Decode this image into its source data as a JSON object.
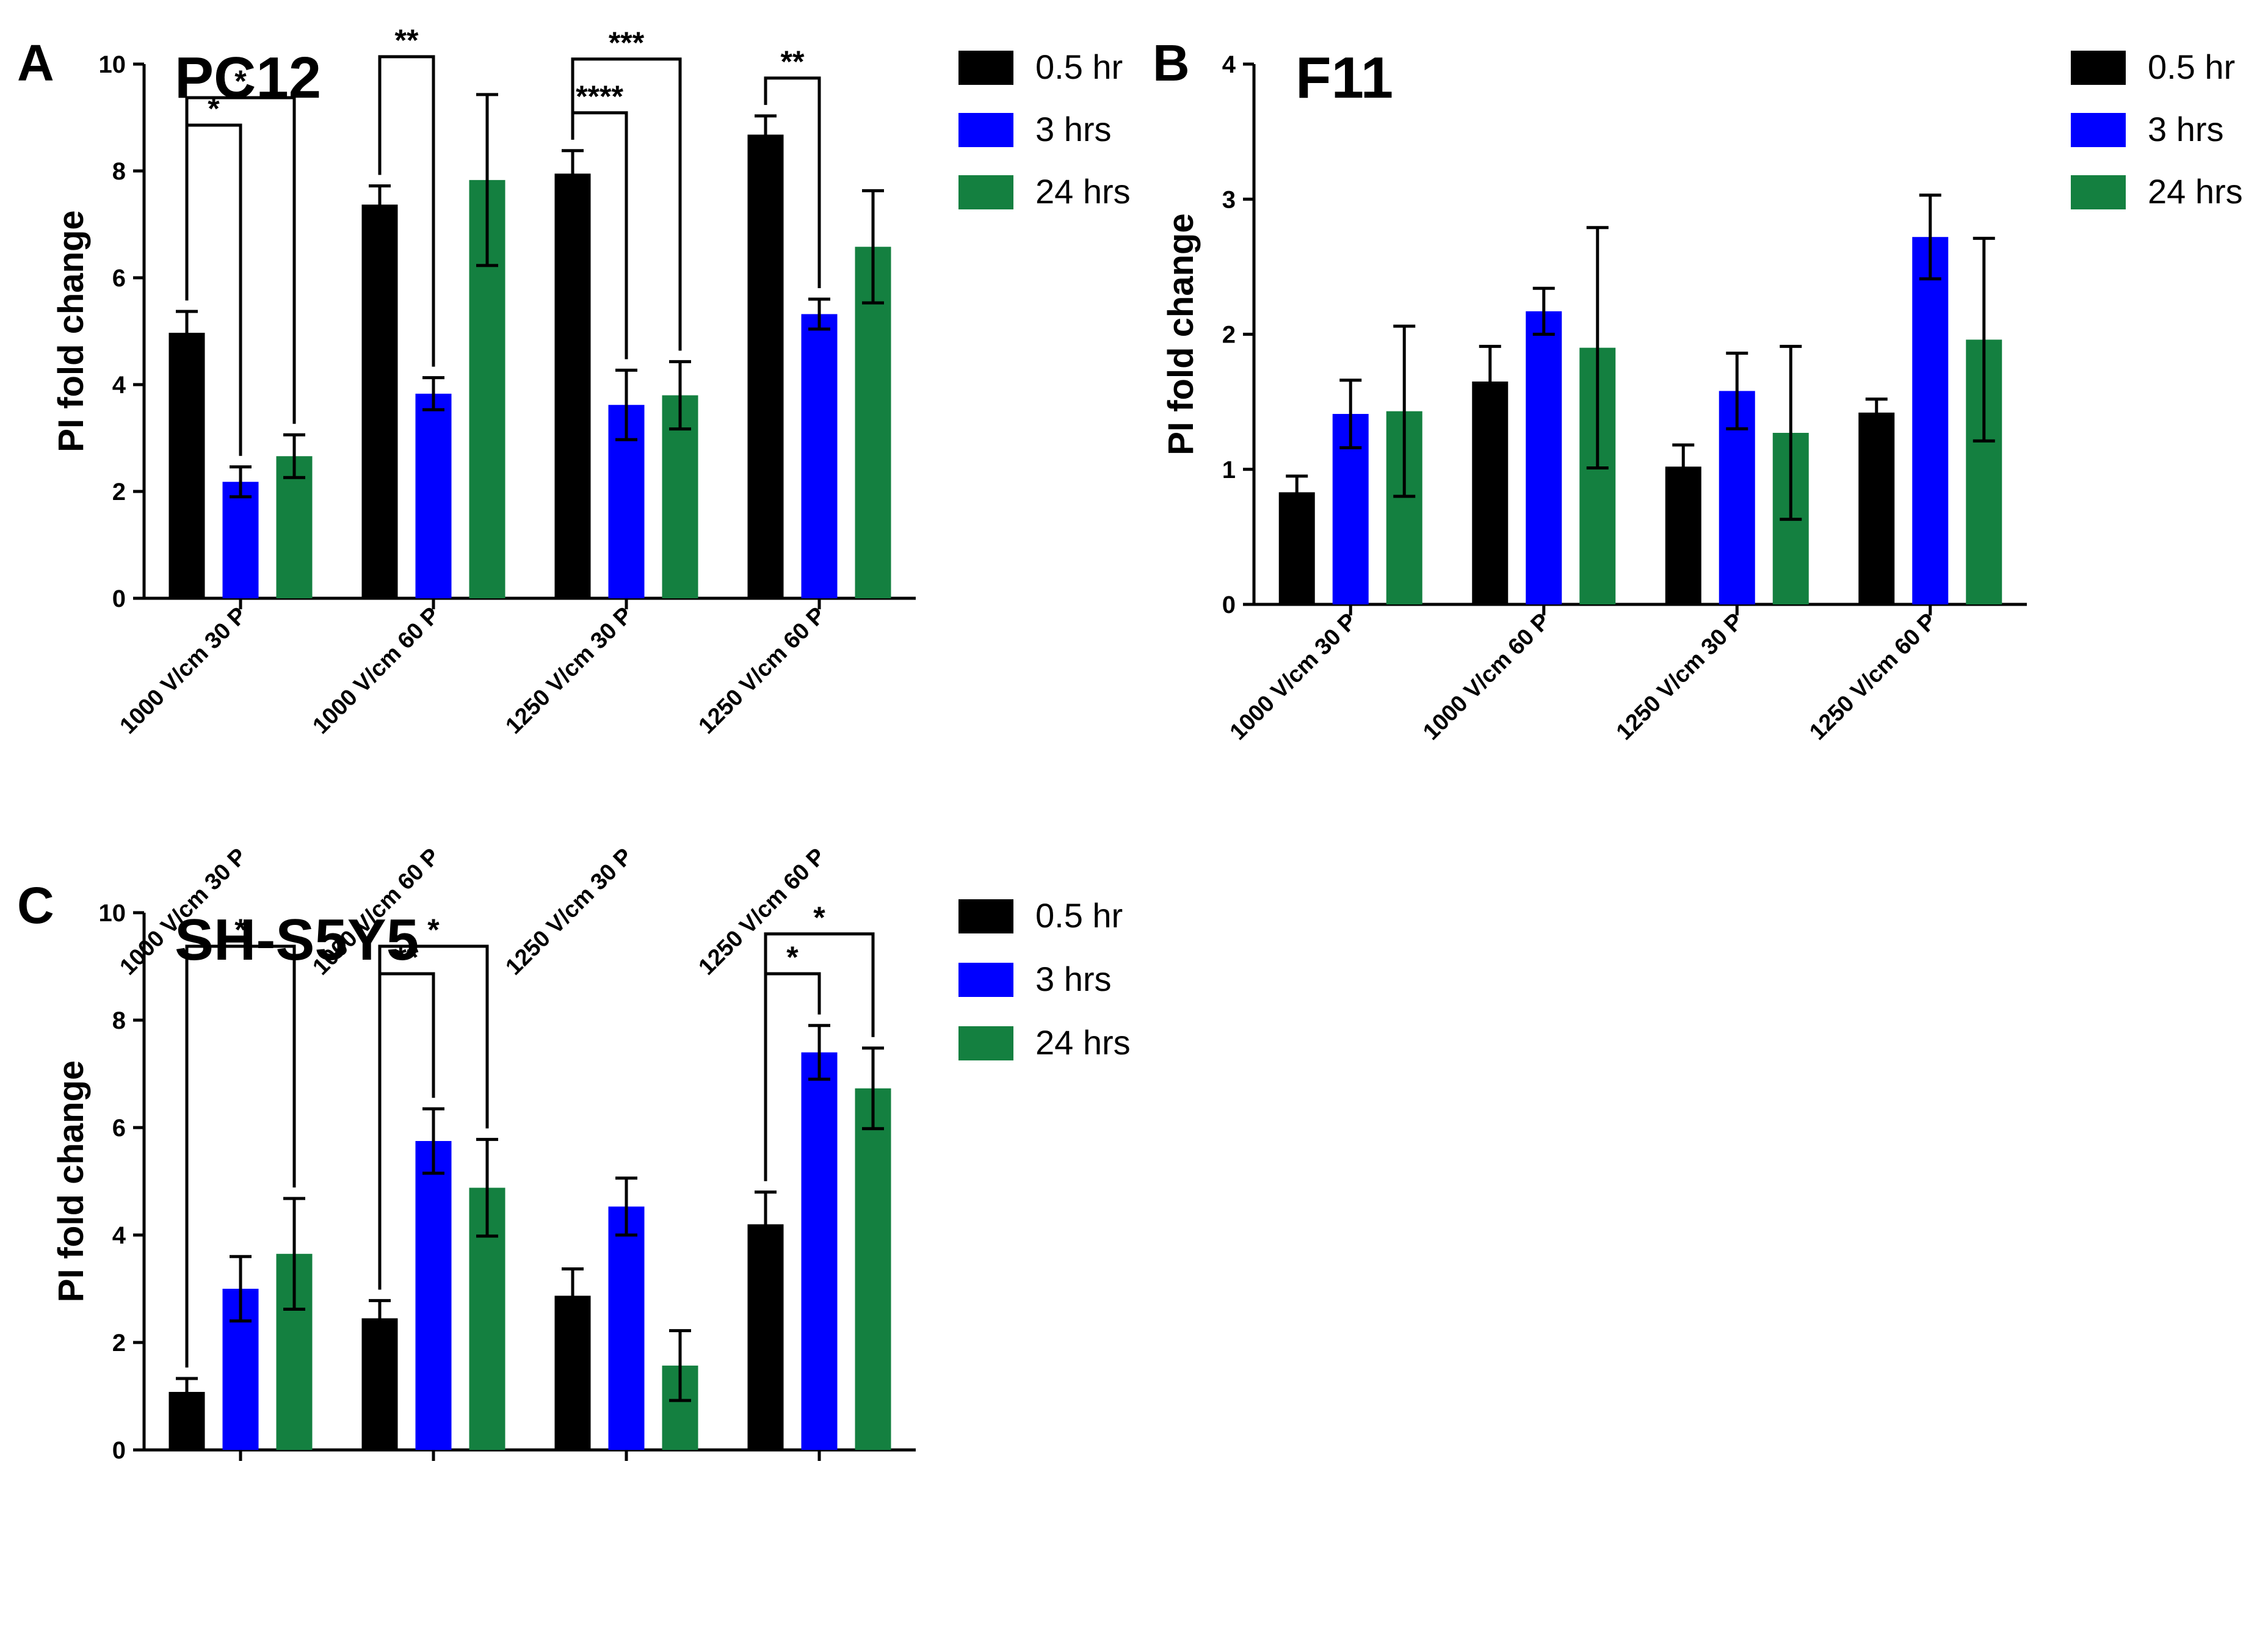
{
  "colors": {
    "0.5 hr": "#000000",
    "3 hrs": "#0000ff",
    "24 hrs": "#148040"
  },
  "chart_data": [
    {
      "panel": "A",
      "title": "PC12",
      "type": "bar",
      "ylabel": "PI fold change",
      "xlabel": "",
      "ylim": [
        0,
        10
      ],
      "yticks": [
        "0",
        "2",
        "4",
        "6",
        "8",
        "10"
      ],
      "categories": [
        "1000 V/cm 30 P",
        "1000 V/cm 60 P",
        "1250 V/cm 30 P",
        "1250 V/cm 60 P"
      ],
      "legend": [
        "0.5 hr",
        "3 hrs",
        "24 hrs"
      ],
      "series": [
        {
          "name": "0.5 hr",
          "values": [
            4.97,
            7.37,
            7.95,
            8.68
          ],
          "errors": [
            0.4,
            0.35,
            0.43,
            0.35
          ]
        },
        {
          "name": "3 hrs",
          "values": [
            2.18,
            3.83,
            3.62,
            5.32
          ],
          "errors": [
            0.28,
            0.3,
            0.65,
            0.28
          ]
        },
        {
          "name": "24 hrs",
          "values": [
            2.66,
            7.83,
            3.8,
            6.58
          ],
          "errors": [
            0.4,
            1.6,
            0.63,
            1.05
          ]
        }
      ],
      "significance": [
        {
          "category": 0,
          "from": 0,
          "to": 1,
          "label": "*",
          "level": 1
        },
        {
          "category": 0,
          "from": 0,
          "to": 2,
          "label": "*",
          "level": 2
        },
        {
          "category": 1,
          "from": 0,
          "to": 1,
          "label": "**",
          "level": 1
        },
        {
          "category": 2,
          "from": 0,
          "to": 1,
          "label": "****",
          "level": 1
        },
        {
          "category": 2,
          "from": 0,
          "to": 2,
          "label": "***",
          "level": 2
        },
        {
          "category": 3,
          "from": 0,
          "to": 1,
          "label": "**",
          "level": 1
        }
      ]
    },
    {
      "panel": "B",
      "title": "F11",
      "type": "bar",
      "ylabel": "PI fold change",
      "xlabel": "",
      "ylim": [
        0,
        4
      ],
      "yticks": [
        "0",
        "1",
        "2",
        "3",
        "4"
      ],
      "categories": [
        "1000 V/cm 30 P",
        "1000 V/cm 60 P",
        "1250 V/cm 30 P",
        "1250 V/cm 60 P"
      ],
      "legend": [
        "0.5 hr",
        "3 hrs",
        "24 hrs"
      ],
      "series": [
        {
          "name": "0.5 hr",
          "values": [
            0.83,
            1.65,
            1.02,
            1.42
          ],
          "errors": [
            0.12,
            0.26,
            0.16,
            0.1
          ]
        },
        {
          "name": "3 hrs",
          "values": [
            1.41,
            2.17,
            1.58,
            2.72
          ],
          "errors": [
            0.25,
            0.17,
            0.28,
            0.31
          ]
        },
        {
          "name": "24 hrs",
          "values": [
            1.43,
            1.9,
            1.27,
            1.96
          ],
          "errors": [
            0.63,
            0.89,
            0.64,
            0.75
          ]
        }
      ],
      "significance": []
    },
    {
      "panel": "C",
      "title": "SH-S5Y5",
      "type": "bar",
      "ylabel": "PI fold change",
      "xlabel": "",
      "ylim": [
        0,
        10
      ],
      "yticks": [
        "0",
        "2",
        "4",
        "6",
        "8",
        "10"
      ],
      "categories": [
        "1000 V/cm 30 P",
        "1000 V/cm 60 P",
        "1250 V/cm 30 P",
        "1250 V/cm 60 P"
      ],
      "legend": [
        "0.5 hr",
        "3 hrs",
        "24 hrs"
      ],
      "series": [
        {
          "name": "0.5 hr",
          "values": [
            1.08,
            2.45,
            2.87,
            4.2
          ],
          "errors": [
            0.25,
            0.33,
            0.5,
            0.6
          ]
        },
        {
          "name": "3 hrs",
          "values": [
            3.0,
            5.75,
            4.53,
            7.4
          ],
          "errors": [
            0.6,
            0.6,
            0.53,
            0.5
          ]
        },
        {
          "name": "24 hrs",
          "values": [
            3.65,
            4.88,
            1.57,
            6.73
          ],
          "errors": [
            1.03,
            0.9,
            0.65,
            0.75
          ]
        }
      ],
      "significance": [
        {
          "category": 0,
          "from": 0,
          "to": 2,
          "label": "*",
          "level": 2
        },
        {
          "category": 1,
          "from": 0,
          "to": 1,
          "label": "**",
          "level": 1
        },
        {
          "category": 1,
          "from": 0,
          "to": 2,
          "label": "*",
          "level": 2
        },
        {
          "category": 3,
          "from": 0,
          "to": 1,
          "label": "*",
          "level": 1
        },
        {
          "category": 3,
          "from": 0,
          "to": 2,
          "label": "*",
          "level": 2
        }
      ]
    }
  ]
}
